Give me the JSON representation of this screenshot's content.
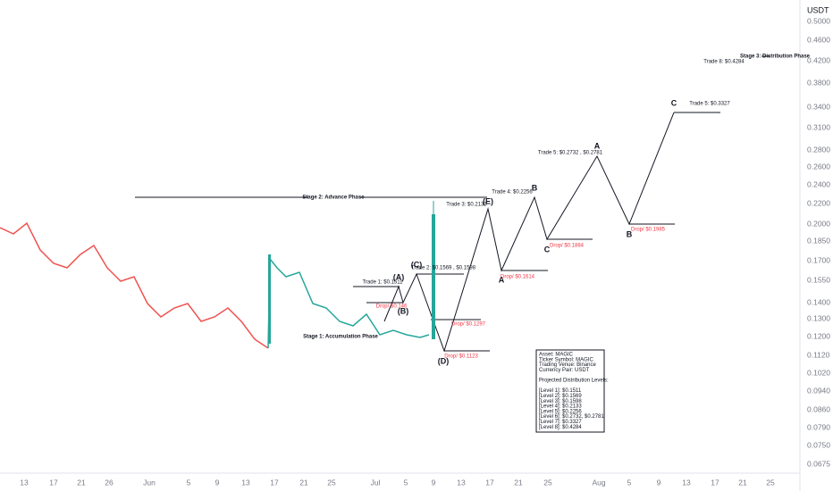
{
  "axis": {
    "price_unit": "USDT",
    "price_labels": [
      "0.5000",
      "0.4600",
      "0.4200",
      "0.3800",
      "0.3400",
      "0.3100",
      "0.2800",
      "0.2600",
      "0.2400",
      "0.2200",
      "0.2000",
      "0.1850",
      "0.1700",
      "0.1550",
      "0.1400",
      "0.1300",
      "0.1200",
      "0.1120",
      "0.1020",
      "0.0940",
      "0.0860",
      "0.0790",
      "0.0750",
      "0.0675"
    ],
    "time_labels": [
      "13",
      "17",
      "21",
      "26",
      "Jun",
      "5",
      "9",
      "13",
      "17",
      "21",
      "25",
      "Jul",
      "5",
      "9",
      "13",
      "17",
      "21",
      "25",
      "Aug",
      "5",
      "9",
      "13",
      "17",
      "21",
      "25"
    ]
  },
  "annotations": [
    "Stage 2: Advance Phase",
    "Stage 1: Accumulation Phase",
    "Stage 3: Distribution Phase",
    "Trade 8: $0.4284",
    "Trade 5: $0.3327",
    "C",
    "Trade 5: $0.2732 , $0.2781",
    "A",
    "Trade 4: $0.2256",
    "B",
    "Trade 3: $0.2133",
    "(E)",
    "C",
    "Drop/ $0.1884",
    "B",
    "Drop/ $0.1985",
    "A",
    "Drop/ $0.1614",
    "(C)",
    "Trade 2: $0.1569 , $0.1598",
    "Trade 1: $0.1511",
    "(A)",
    "Drop/ $0.146",
    "(B)",
    "Drop/ $0.1297",
    "(D)",
    "Drop/ $0.1123"
  ],
  "info_box": [
    "Asset:  MAGIC",
    "Ticker Symbol: MAGIC",
    "Trading Venue: Binance",
    "Currency Pair: USDT",
    "",
    "Projected Distribution Levels:",
    "",
    "[Level 1]: $0.1511",
    "[Level 2]: $0.1569",
    "[Level 3]: $0.1598",
    "[Level 4]: $0.2133",
    "[Level 5]: $0.2256",
    "[Level 6]: $0.2732, $0.2781",
    "[Level 7]: $0.3327",
    "[Level 8]: $0.4284"
  ]
}
